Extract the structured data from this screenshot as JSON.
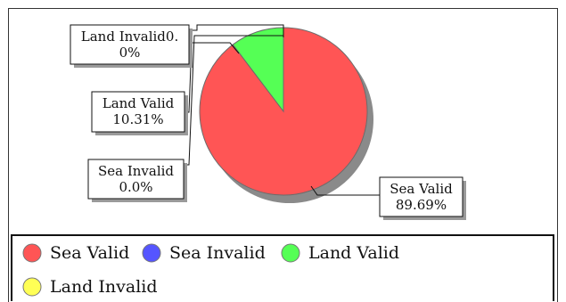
{
  "chart_data": {
    "type": "pie",
    "title": "",
    "slices": [
      {
        "name": "Sea Valid",
        "value": 89.69,
        "label": "Sea Valid\n89.69%",
        "color": "#ff5555"
      },
      {
        "name": "Sea Invalid",
        "value": 0.0,
        "label": "Sea Invalid\n0.0%",
        "color": "#5555ff"
      },
      {
        "name": "Land Valid",
        "value": 10.31,
        "label": "Land Valid\n10.31%",
        "color": "#55ff55"
      },
      {
        "name": "Land Invalid",
        "value": 0.0,
        "label": "Land Invalid0.\n0%",
        "color": "#ffff55"
      }
    ],
    "legend": {
      "placement": "bottom",
      "items": [
        {
          "name": "Sea Valid",
          "color": "#ff5555"
        },
        {
          "name": "Sea Invalid",
          "color": "#5555ff"
        },
        {
          "name": "Land Valid",
          "color": "#55ff55"
        },
        {
          "name": "Land Invalid",
          "color": "#ffff55"
        }
      ]
    }
  }
}
